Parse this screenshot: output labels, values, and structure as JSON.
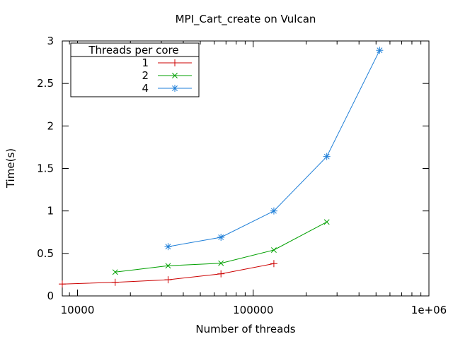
{
  "chart_data": {
    "type": "line",
    "title": "MPI_Cart_create on Vulcan",
    "xlabel": "Number of threads",
    "ylabel": "Time(s)",
    "x_scale": "log",
    "xlim": [
      8192,
      1000000
    ],
    "ylim": [
      0,
      3
    ],
    "x_ticks": [
      {
        "value": 10000,
        "label": "10000"
      },
      {
        "value": 100000,
        "label": "100000"
      },
      {
        "value": 1000000,
        "label": "1e+06"
      }
    ],
    "y_ticks": [
      {
        "value": 0,
        "label": "0"
      },
      {
        "value": 0.5,
        "label": "0.5"
      },
      {
        "value": 1,
        "label": "1"
      },
      {
        "value": 1.5,
        "label": "1.5"
      },
      {
        "value": 2,
        "label": "2"
      },
      {
        "value": 2.5,
        "label": "2.5"
      },
      {
        "value": 3,
        "label": "3"
      }
    ],
    "grid": false,
    "legend": {
      "title": "Threads per core",
      "placement": "top-left"
    },
    "series": [
      {
        "name": "1",
        "color": "#cc0000",
        "marker": "plus",
        "x": [
          8192,
          16384,
          32768,
          65536,
          131072
        ],
        "y": [
          0.14,
          0.16,
          0.19,
          0.26,
          0.38
        ]
      },
      {
        "name": "2",
        "color": "#00a000",
        "marker": "x",
        "x": [
          16384,
          32768,
          65536,
          131072,
          262144
        ],
        "y": [
          0.28,
          0.355,
          0.385,
          0.54,
          0.87
        ]
      },
      {
        "name": "4",
        "color": "#1f7fd8",
        "marker": "star",
        "x": [
          32768,
          65536,
          131072,
          262144,
          524288
        ],
        "y": [
          0.58,
          0.69,
          1.0,
          1.64,
          2.89
        ]
      }
    ]
  }
}
